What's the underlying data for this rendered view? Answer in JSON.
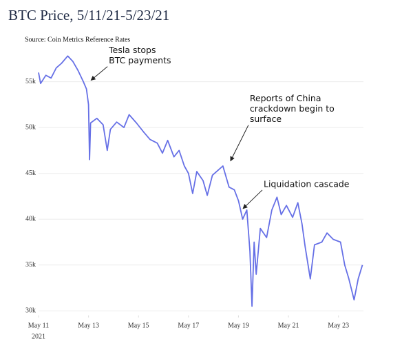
{
  "chart_data": {
    "type": "line",
    "title": "BTC Price, 5/11/21-5/23/21",
    "subtitle": "Source: Coin Metrics Reference Rates",
    "x": [
      "2021-05-11T00:00",
      "2021-05-11T02:00",
      "2021-05-11T07:00",
      "2021-05-11T12:00",
      "2021-05-11T17:00",
      "2021-05-11T22:00",
      "2021-05-12T04:00",
      "2021-05-12T09:00",
      "2021-05-12T14:00",
      "2021-05-12T19:00",
      "2021-05-12T22:00",
      "2021-05-13T00:00",
      "2021-05-13T01:00",
      "2021-05-13T02:00",
      "2021-05-13T08:00",
      "2021-05-13T14:00",
      "2021-05-13T18:00",
      "2021-05-13T21:00",
      "2021-05-14T03:00",
      "2021-05-14T10:00",
      "2021-05-14T15:00",
      "2021-05-14T22:00",
      "2021-05-15T05:00",
      "2021-05-15T11:00",
      "2021-05-15T18:00",
      "2021-05-15T23:00",
      "2021-05-16T04:00",
      "2021-05-16T10:00",
      "2021-05-16T15:00",
      "2021-05-16T20:00",
      "2021-05-17T00:00",
      "2021-05-17T04:00",
      "2021-05-17T08:00",
      "2021-05-17T14:00",
      "2021-05-17T18:00",
      "2021-05-17T23:00",
      "2021-05-18T04:00",
      "2021-05-18T09:00",
      "2021-05-18T15:00",
      "2021-05-18T20:00",
      "2021-05-19T00:00",
      "2021-05-19T04:00",
      "2021-05-19T08:00",
      "2021-05-19T11:00",
      "2021-05-19T13:00",
      "2021-05-19T15:00",
      "2021-05-19T17:00",
      "2021-05-19T21:00",
      "2021-05-20T03:00",
      "2021-05-20T08:00",
      "2021-05-20T13:00",
      "2021-05-20T17:00",
      "2021-05-20T22:00",
      "2021-05-21T04:00",
      "2021-05-21T09:00",
      "2021-05-21T13:00",
      "2021-05-21T16:00",
      "2021-05-21T21:00",
      "2021-05-22T01:00",
      "2021-05-22T08:00",
      "2021-05-22T13:00",
      "2021-05-22T19:00",
      "2021-05-23T02:00",
      "2021-05-23T06:00",
      "2021-05-23T10:00",
      "2021-05-23T15:00",
      "2021-05-23T19:00",
      "2021-05-23T23:00"
    ],
    "series": [
      {
        "name": "BTC",
        "color": "#6670e6",
        "values": [
          56000,
          54800,
          55700,
          55400,
          56500,
          57000,
          57800,
          57200,
          56200,
          55000,
          54200,
          52500,
          46500,
          50500,
          51000,
          50300,
          47500,
          49800,
          50600,
          50000,
          51400,
          50500,
          49500,
          48700,
          48300,
          47200,
          48600,
          46800,
          47500,
          45800,
          45000,
          42800,
          45200,
          44200,
          42600,
          44800,
          45300,
          45800,
          43500,
          43200,
          42000,
          40000,
          41000,
          36500,
          30500,
          37500,
          34000,
          39000,
          38000,
          41000,
          42400,
          40500,
          41500,
          40200,
          41800,
          39500,
          37000,
          33500,
          37200,
          37500,
          38500,
          37800,
          37500,
          35000,
          33500,
          31200,
          33500,
          35000
        ]
      }
    ],
    "xlim": [
      "2021-05-11T00:00",
      "2021-05-24T00:00"
    ],
    "xticks": [
      {
        "value": "2021-05-11",
        "label": "May 11"
      },
      {
        "value": "2021-05-13",
        "label": "May 13"
      },
      {
        "value": "2021-05-15",
        "label": "May 15"
      },
      {
        "value": "2021-05-17",
        "label": "May 17"
      },
      {
        "value": "2021-05-19",
        "label": "May 19"
      },
      {
        "value": "2021-05-21",
        "label": "May 21"
      },
      {
        "value": "2021-05-23",
        "label": "May 23"
      }
    ],
    "xtick_year": "2021",
    "ylim": [
      29500,
      58500
    ],
    "yticks": [
      {
        "value": 30000,
        "label": "30k"
      },
      {
        "value": 35000,
        "label": "35k"
      },
      {
        "value": 40000,
        "label": "40k"
      },
      {
        "value": 45000,
        "label": "45k"
      },
      {
        "value": 50000,
        "label": "50k"
      },
      {
        "value": 55000,
        "label": "55k"
      }
    ],
    "grid": true,
    "annotations": [
      {
        "lines": [
          "Tesla stops",
          "BTC payments"
        ],
        "x": "2021-05-13T01:00",
        "y": 55000
      },
      {
        "lines": [
          "Reports of China",
          "crackdown begin to",
          "surface"
        ],
        "x": "2021-05-18T15:00",
        "y": 46200
      },
      {
        "lines": [
          "Liquidation cascade"
        ],
        "x": "2021-05-19T03:00",
        "y": 41000
      }
    ]
  }
}
